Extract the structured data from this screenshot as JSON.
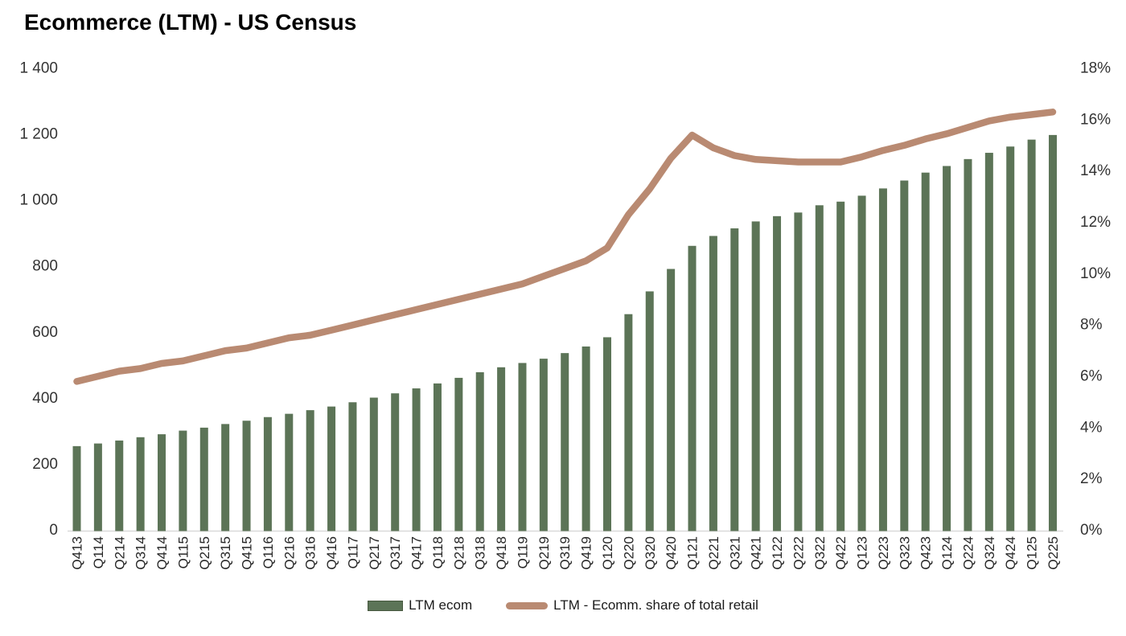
{
  "title": "Ecommerce (LTM) - US Census",
  "legend": [
    {
      "label": "LTM ecom",
      "type": "bar"
    },
    {
      "label": "LTM - Ecomm. share of total retail",
      "type": "line"
    }
  ],
  "colors": {
    "bar": "#5c7457",
    "bar_swatch_border": "#47583f",
    "line": "#b98a72",
    "axis_line": "#d9d9d9",
    "axis_text": "#333333",
    "title_text": "#000000",
    "background": "#ffffff"
  },
  "chart_data": {
    "type": "combo",
    "title": "Ecommerce (LTM) - US Census",
    "grid": false,
    "legend_position": "bottom",
    "categories": [
      "Q413",
      "Q114",
      "Q214",
      "Q314",
      "Q414",
      "Q115",
      "Q215",
      "Q315",
      "Q415",
      "Q116",
      "Q216",
      "Q316",
      "Q416",
      "Q117",
      "Q217",
      "Q317",
      "Q417",
      "Q118",
      "Q218",
      "Q318",
      "Q418",
      "Q119",
      "Q219",
      "Q319",
      "Q419",
      "Q120",
      "Q220",
      "Q320",
      "Q420",
      "Q121",
      "Q221",
      "Q321",
      "Q421",
      "Q122",
      "Q222",
      "Q322",
      "Q422",
      "Q123",
      "Q223",
      "Q323",
      "Q423",
      "Q124",
      "Q224",
      "Q324",
      "Q424",
      "Q125",
      "Q225"
    ],
    "series": [
      {
        "name": "LTM ecom",
        "type": "bar",
        "axis": "left",
        "color": "#5c7457",
        "values": [
          255,
          263,
          272,
          282,
          291,
          302,
          311,
          322,
          332,
          343,
          353,
          364,
          375,
          388,
          402,
          415,
          430,
          445,
          462,
          479,
          494,
          507,
          520,
          537,
          557,
          585,
          655,
          724,
          792,
          862,
          892,
          915,
          936,
          952,
          963,
          985,
          996,
          1014,
          1036,
          1060,
          1084,
          1104,
          1125,
          1144,
          1163,
          1184,
          1198
        ]
      },
      {
        "name": "LTM - Ecomm. share of total retail",
        "type": "line",
        "axis": "right",
        "color": "#b98a72",
        "values": [
          5.8,
          6.0,
          6.2,
          6.3,
          6.5,
          6.6,
          6.8,
          7.0,
          7.1,
          7.3,
          7.5,
          7.6,
          7.8,
          8.0,
          8.2,
          8.4,
          8.6,
          8.8,
          9.0,
          9.2,
          9.4,
          9.6,
          9.9,
          10.2,
          10.5,
          11.0,
          12.3,
          13.3,
          14.5,
          15.4,
          14.9,
          14.6,
          14.45,
          14.4,
          14.35,
          14.35,
          14.35,
          14.55,
          14.8,
          15.0,
          15.25,
          15.45,
          15.7,
          15.95,
          16.1,
          16.2,
          16.3
        ]
      }
    ],
    "left_axis": {
      "min": 0,
      "max": 1400,
      "step": 200,
      "tick_labels": [
        "0",
        "200",
        "400",
        "600",
        "800",
        "1 000",
        "1 200",
        "1 400"
      ]
    },
    "right_axis": {
      "min": 0,
      "max": 18,
      "step": 2,
      "unit": "%",
      "tick_labels": [
        "0%",
        "2%",
        "4%",
        "6%",
        "8%",
        "10%",
        "12%",
        "14%",
        "16%",
        "18%"
      ]
    }
  }
}
